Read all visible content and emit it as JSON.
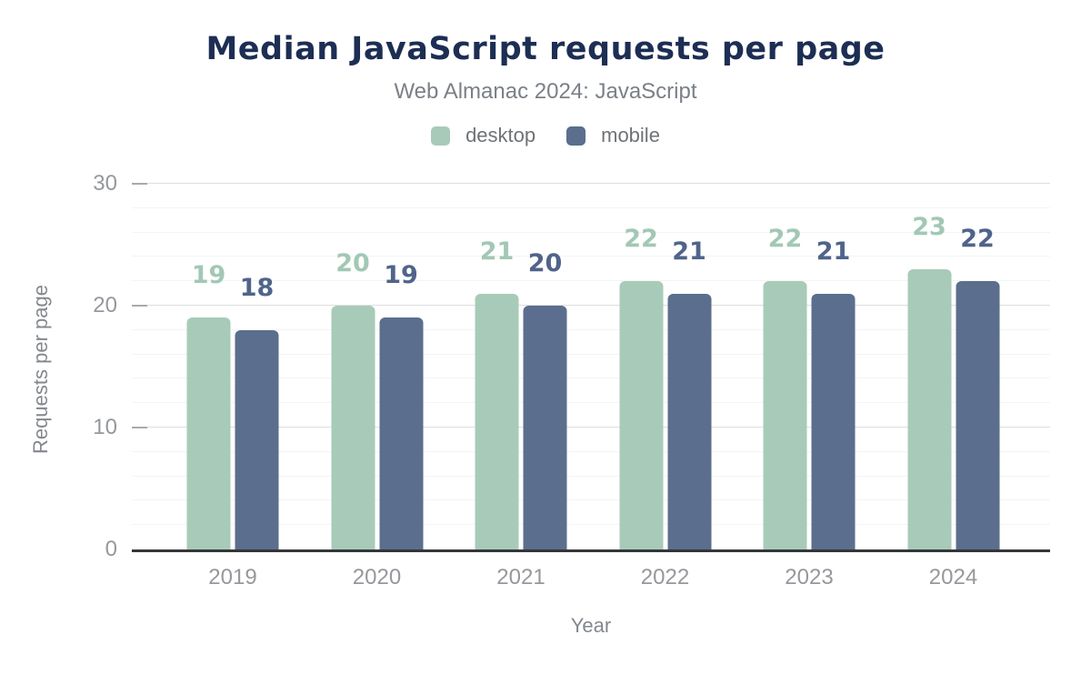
{
  "chart_data": {
    "type": "bar",
    "title": "Median JavaScript requests per page",
    "subtitle": "Web Almanac 2024: JavaScript",
    "categories": [
      "2019",
      "2020",
      "2021",
      "2022",
      "2023",
      "2024"
    ],
    "series": [
      {
        "name": "desktop",
        "values": [
          19,
          20,
          21,
          22,
          22,
          23
        ],
        "color": "#a7cbb8",
        "label_color": "#a2c8b5"
      },
      {
        "name": "mobile",
        "values": [
          18,
          19,
          20,
          21,
          21,
          22
        ],
        "color": "#5b6e8d",
        "label_color": "#50648a"
      }
    ],
    "xlabel": "Year",
    "ylabel": "Requests per page",
    "ylim": [
      0,
      30
    ],
    "yticks": [
      0,
      10,
      20,
      30
    ],
    "minor_grid_step": 2,
    "grid": true,
    "data_labels": true,
    "legend_position": "top",
    "colors": {
      "title": "#1d2e54",
      "subtitle": "#7b8087",
      "legend_text": "#6e7377",
      "tick_label": "#95989c",
      "axis_title": "#84888d",
      "axis_line": "#343637",
      "grid_major": "#dcdee0",
      "grid_minor": "#f3f4f5",
      "background": "#ffffff"
    }
  }
}
